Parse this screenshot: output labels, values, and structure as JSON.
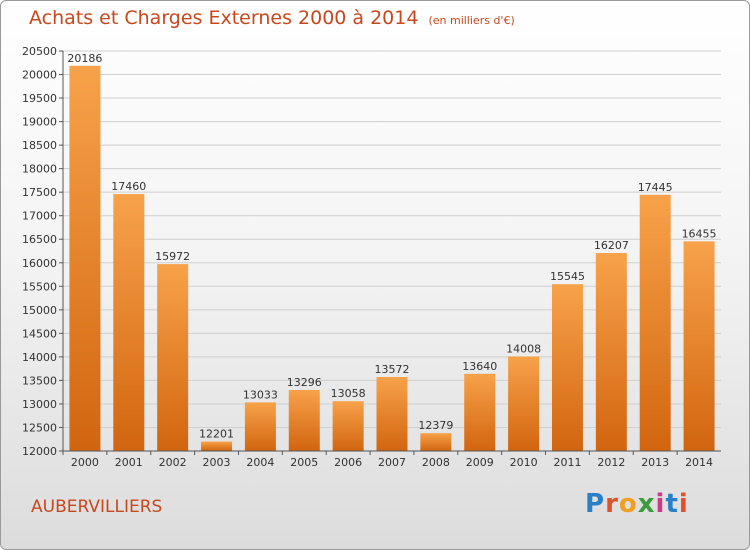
{
  "title": "Achats et Charges Externes 2000 à 2014",
  "subtitle": "(en milliers d'€)",
  "city": "AUBERVILLIERS",
  "logo": "Proxiti",
  "colors": {
    "bar_light": "#f7a24a",
    "bar_dark": "#d2650f",
    "title": "#c8471c",
    "grid": "#cfcfcf"
  },
  "chart_data": {
    "type": "bar",
    "title": "Achats et Charges Externes 2000 à 2014",
    "subtitle": "(en milliers d'€)",
    "xlabel": "",
    "ylabel": "",
    "ylim": [
      12000,
      20500
    ],
    "ytick_step": 500,
    "grid": true,
    "categories": [
      "2000",
      "2001",
      "2002",
      "2003",
      "2004",
      "2005",
      "2006",
      "2007",
      "2008",
      "2009",
      "2010",
      "2011",
      "2012",
      "2013",
      "2014"
    ],
    "values": [
      20186,
      17460,
      15972,
      12201,
      13033,
      13296,
      13058,
      13572,
      12379,
      13640,
      14008,
      15545,
      16207,
      17445,
      16455
    ]
  }
}
